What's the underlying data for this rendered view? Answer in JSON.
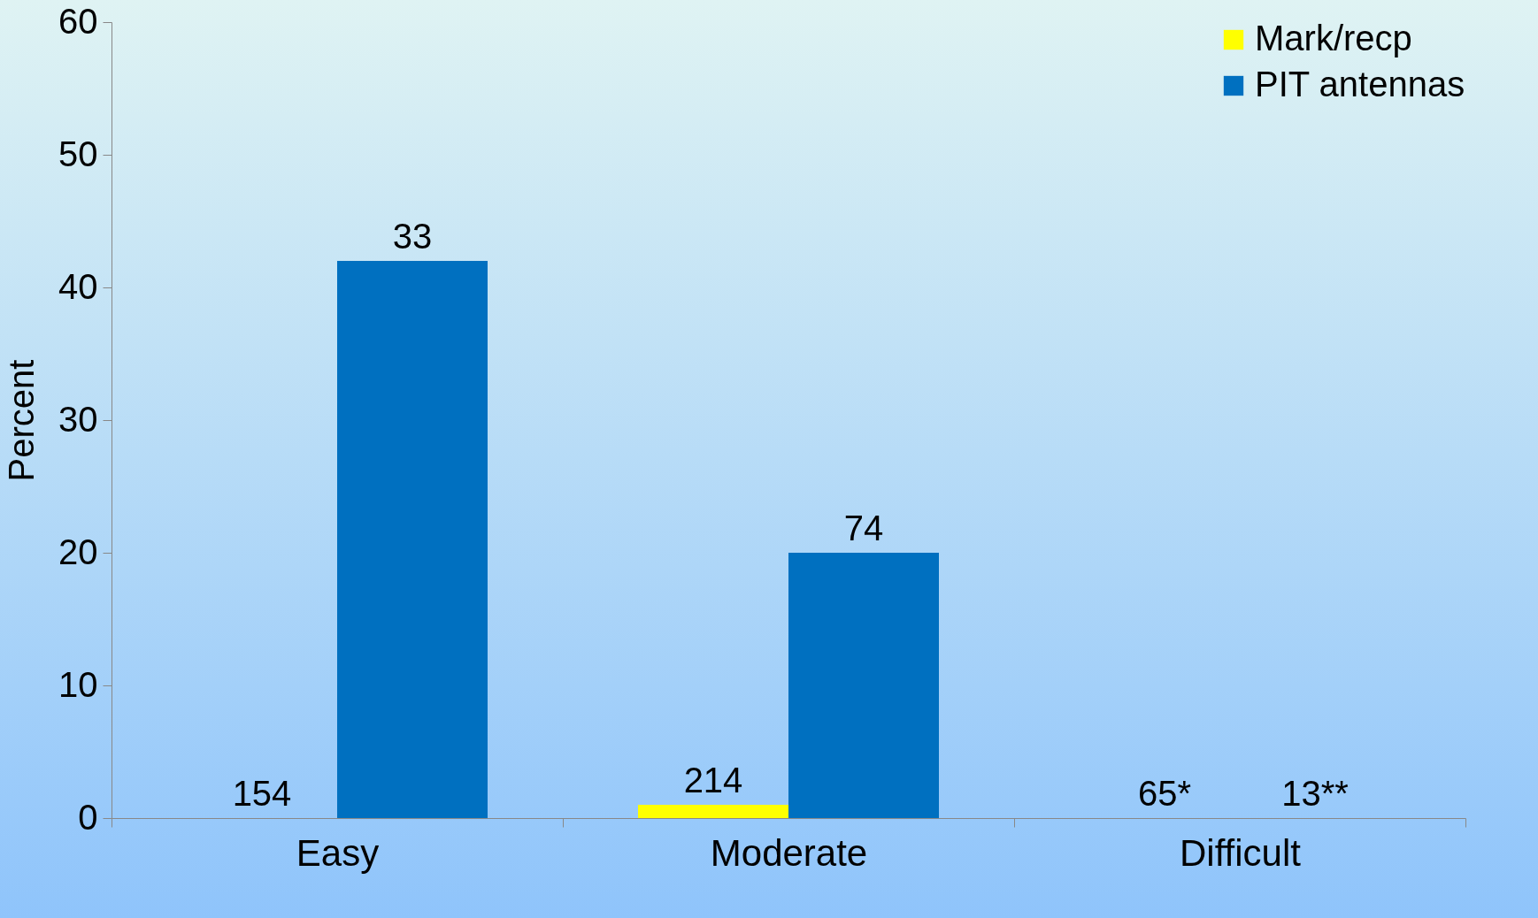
{
  "chart_data": {
    "type": "bar",
    "ylabel": "Percent",
    "categories": [
      "Easy",
      "Moderate",
      "Difficult"
    ],
    "series": [
      {
        "name": "Mark/recp",
        "color": "#ffff00",
        "values": [
          0,
          1,
          0
        ]
      },
      {
        "name": "PIT antennas",
        "color": "#0070c0",
        "values": [
          42,
          20,
          0
        ]
      }
    ],
    "annotations": [
      {
        "text": "154",
        "x": "Easy",
        "y": 0
      },
      {
        "text": "33",
        "x": "Easy",
        "y": 42
      },
      {
        "text": "214",
        "x": "Moderate",
        "y": 1
      },
      {
        "text": "74",
        "x": "Moderate",
        "y": 20
      },
      {
        "text": "65*",
        "x": "Difficult",
        "y": 0
      },
      {
        "text": "13**",
        "x": "Difficult",
        "y": 0
      }
    ],
    "ylim": [
      0,
      60
    ],
    "yticks": [
      0,
      10,
      20,
      30,
      40,
      50,
      60
    ],
    "legend": "top right"
  }
}
